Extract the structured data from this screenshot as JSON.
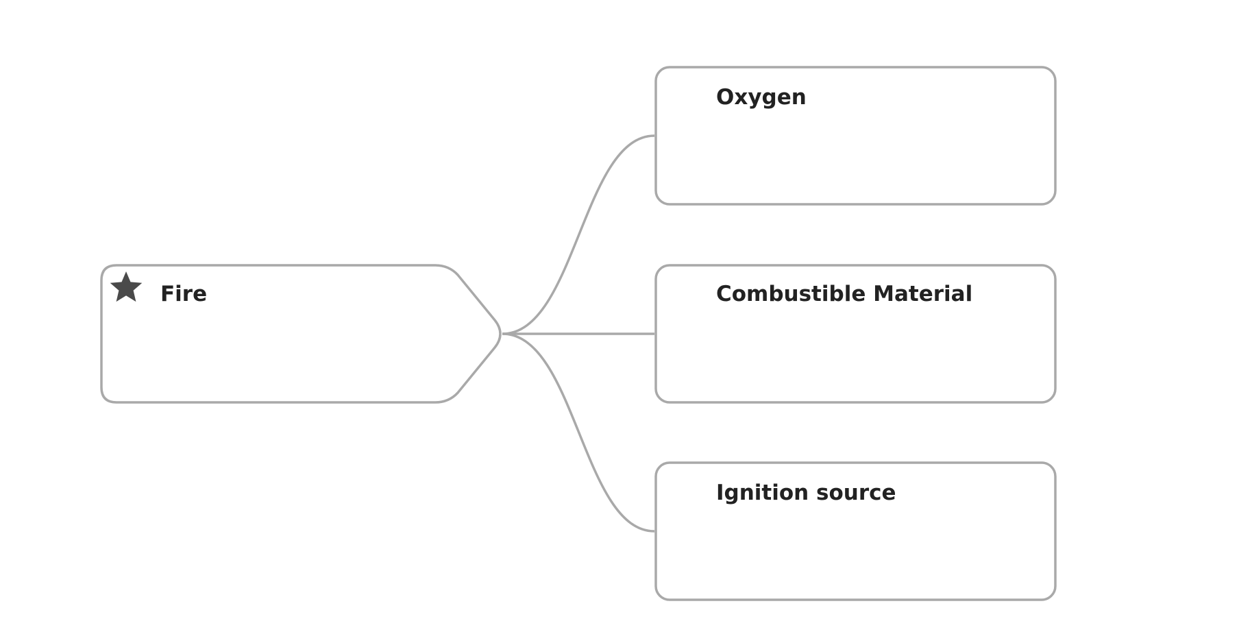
{
  "diagram": {
    "type": "mind-map",
    "root": {
      "label": "Fire",
      "icon": "star-icon"
    },
    "children": [
      {
        "label": "Oxygen"
      },
      {
        "label": "Combustible Material"
      },
      {
        "label": "Ignition source"
      }
    ],
    "colors": {
      "stroke": "#a9a9a9",
      "text": "#222222",
      "icon": "#4a4a4a",
      "background": "#ffffff"
    }
  }
}
